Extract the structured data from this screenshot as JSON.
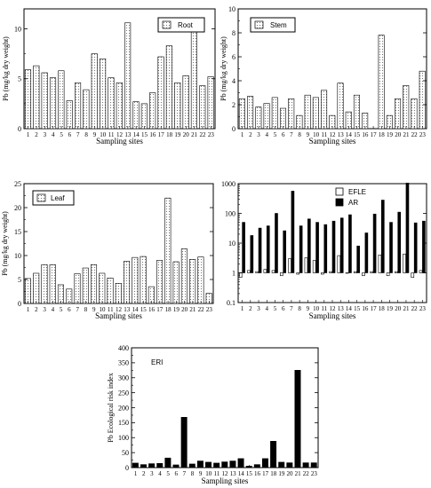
{
  "chart_data": [
    {
      "type": "bar",
      "ylabel": "Pb (mg/kg dry weight)",
      "xlabel": "Sampling sites",
      "ylim": [
        0,
        12
      ],
      "yticks": [
        0,
        5,
        10
      ],
      "categories": [
        "1",
        "2",
        "3",
        "4",
        "5",
        "6",
        "7",
        "8",
        "9",
        "10",
        "11",
        "12",
        "13",
        "14",
        "15",
        "16",
        "17",
        "18",
        "19",
        "20",
        "21",
        "22",
        "23"
      ],
      "series": [
        {
          "name": "Root",
          "style": "dotted-pattern",
          "values": [
            5.9,
            6.3,
            5.6,
            5.1,
            5.8,
            2.8,
            4.6,
            3.9,
            7.5,
            7.0,
            5.1,
            4.6,
            10.6,
            2.7,
            2.5,
            3.6,
            7.2,
            8.3,
            4.6,
            5.3,
            9.7,
            4.3,
            5.2
          ]
        }
      ],
      "legend_position": "top-right"
    },
    {
      "type": "bar",
      "ylabel": "Pb (mg/kg dry weight)",
      "xlabel": "Sampling sites",
      "ylim": [
        0,
        10
      ],
      "yticks": [
        0,
        2,
        4,
        6,
        8,
        10
      ],
      "categories": [
        "1",
        "2",
        "3",
        "4",
        "5",
        "6",
        "7",
        "8",
        "9",
        "10",
        "11",
        "12",
        "13",
        "14",
        "15",
        "16",
        "17",
        "18",
        "19",
        "20",
        "21",
        "22",
        "23"
      ],
      "series": [
        {
          "name": "Stem",
          "style": "dotted-pattern",
          "values": [
            2.5,
            2.7,
            1.8,
            2.1,
            2.6,
            1.7,
            2.5,
            1.1,
            2.8,
            2.6,
            3.2,
            1.1,
            3.8,
            1.4,
            2.8,
            1.3,
            0.0,
            7.8,
            1.1,
            2.5,
            3.6,
            2.5,
            4.8
          ]
        }
      ],
      "legend_position": "top-right"
    },
    {
      "type": "bar",
      "ylabel": "Pb (mg/kg dry weight)",
      "xlabel": "Sampling sites",
      "ylim": [
        0,
        25
      ],
      "yticks": [
        0,
        5,
        10,
        15,
        20,
        25
      ],
      "categories": [
        "1",
        "2",
        "3",
        "4",
        "5",
        "6",
        "7",
        "8",
        "9",
        "10",
        "11",
        "12",
        "13",
        "14",
        "15",
        "16",
        "17",
        "18",
        "19",
        "20",
        "21",
        "22",
        "23"
      ],
      "series": [
        {
          "name": "Leaf",
          "style": "dotted-pattern",
          "values": [
            5.2,
            6.3,
            8.1,
            8.1,
            3.9,
            3.0,
            6.2,
            7.4,
            8.1,
            6.3,
            5.3,
            4.2,
            8.8,
            9.6,
            9.8,
            3.5,
            9.0,
            22.0,
            8.7,
            11.4,
            9.2,
            9.7,
            2.1
          ]
        }
      ],
      "legend_position": "top-left"
    },
    {
      "type": "bar",
      "scale": "log",
      "ylim": [
        0.1,
        1000
      ],
      "yticks": [
        0.1,
        1,
        10,
        100,
        1000
      ],
      "ytick_labels": [
        "0.1",
        "1",
        "10",
        "100",
        "1000"
      ],
      "xlabel": "Sampling sites",
      "categories": [
        "1",
        "2",
        "3",
        "4",
        "5",
        "6",
        "7",
        "8",
        "9",
        "10",
        "11",
        "12",
        "13",
        "14",
        "15",
        "16",
        "17",
        "18",
        "19",
        "20",
        "21",
        "22",
        "23"
      ],
      "series": [
        {
          "name": "EFLE",
          "style": "outline",
          "values": [
            0.7,
            1.2,
            1.1,
            1.3,
            1.2,
            0.8,
            3.0,
            0.9,
            3.2,
            2.6,
            0.9,
            1.1,
            3.8,
            1.0,
            1.1,
            0.8,
            1.1,
            4.0,
            0.8,
            1.1,
            4.3,
            0.7,
            1.2
          ]
        },
        {
          "name": "AR",
          "style": "solid-black",
          "values": [
            50,
            18,
            32,
            38,
            100,
            26,
            560,
            38,
            65,
            50,
            42,
            55,
            70,
            90,
            8,
            22,
            95,
            280,
            50,
            110,
            1050,
            48,
            55
          ]
        }
      ],
      "legend_position": "top-center"
    },
    {
      "type": "bar",
      "ylabel": "Pb Ecological risk index",
      "xlabel": "Sampling sites",
      "ylim": [
        0,
        400
      ],
      "yticks": [
        0,
        50,
        100,
        150,
        200,
        250,
        300,
        350,
        400
      ],
      "categories": [
        "1",
        "2",
        "3",
        "4",
        "5",
        "6",
        "7",
        "8",
        "9",
        "10",
        "11",
        "12",
        "13",
        "14",
        "15",
        "16",
        "17",
        "18",
        "19",
        "20",
        "21",
        "22",
        "23"
      ],
      "series": [
        {
          "name": "ERI",
          "style": "solid-black",
          "values": [
            15,
            10,
            13,
            14,
            32,
            9,
            168,
            12,
            22,
            18,
            15,
            19,
            22,
            30,
            5,
            10,
            30,
            88,
            18,
            16,
            325,
            16,
            16
          ]
        }
      ],
      "legend_position": "top-left"
    }
  ]
}
